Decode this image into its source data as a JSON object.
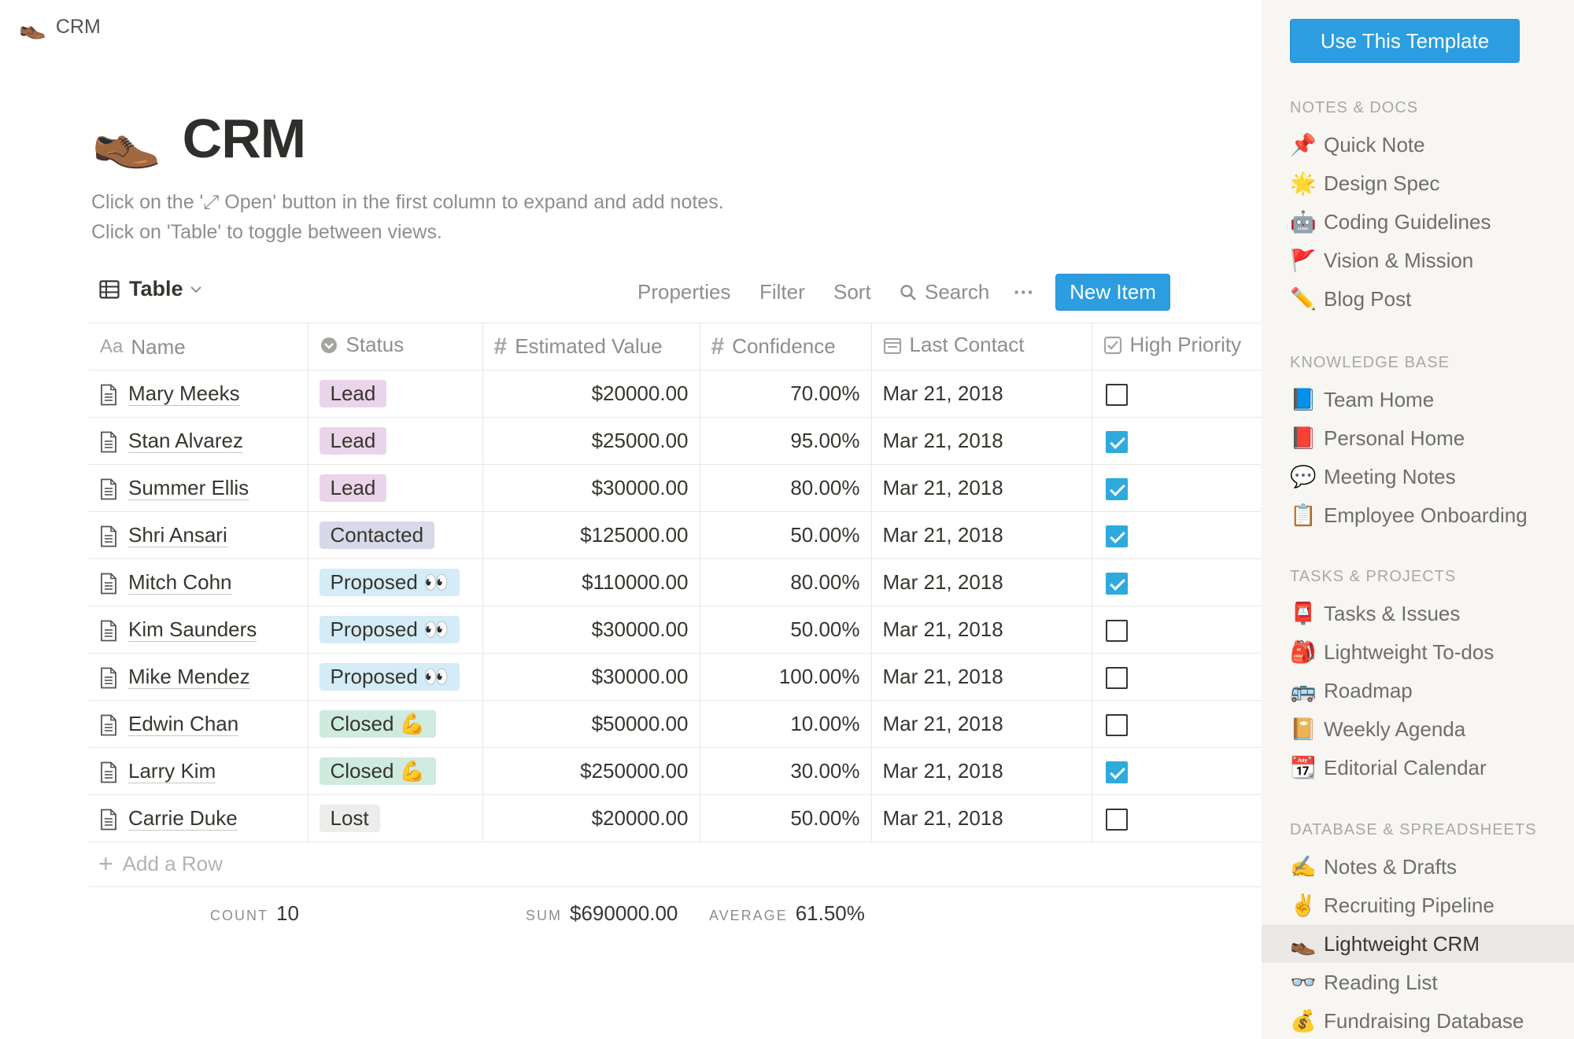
{
  "breadcrumb": {
    "icon": "👞",
    "label": "CRM"
  },
  "page": {
    "icon": "👞",
    "title": "CRM",
    "description": [
      "Click on the '⤢ Open' button in the first column to expand and add notes.",
      "Click on 'Table' to toggle between views."
    ]
  },
  "toolbar": {
    "view_label": "Table",
    "properties": "Properties",
    "filter": "Filter",
    "sort": "Sort",
    "search": "Search",
    "more": "···",
    "new_item": "New Item"
  },
  "table": {
    "headers": {
      "name": "Name",
      "status": "Status",
      "value": "Estimated Value",
      "confidence": "Confidence",
      "last_contact": "Last Contact",
      "high_priority": "High Priority"
    },
    "rows": [
      {
        "name": "Mary Meeks",
        "status": "Lead",
        "value": "$20000.00",
        "confidence": "70.00%",
        "last_contact": "Mar 21, 2018",
        "high_priority": false
      },
      {
        "name": "Stan Alvarez",
        "status": "Lead",
        "value": "$25000.00",
        "confidence": "95.00%",
        "last_contact": "Mar 21, 2018",
        "high_priority": true
      },
      {
        "name": "Summer Ellis",
        "status": "Lead",
        "value": "$30000.00",
        "confidence": "80.00%",
        "last_contact": "Mar 21, 2018",
        "high_priority": true
      },
      {
        "name": "Shri Ansari",
        "status": "Contacted",
        "value": "$125000.00",
        "confidence": "50.00%",
        "last_contact": "Mar 21, 2018",
        "high_priority": true
      },
      {
        "name": "Mitch Cohn",
        "status": "Proposed 👀",
        "value": "$110000.00",
        "confidence": "80.00%",
        "last_contact": "Mar 21, 2018",
        "high_priority": true
      },
      {
        "name": "Kim Saunders",
        "status": "Proposed 👀",
        "value": "$30000.00",
        "confidence": "50.00%",
        "last_contact": "Mar 21, 2018",
        "high_priority": false
      },
      {
        "name": "Mike Mendez",
        "status": "Proposed 👀",
        "value": "$30000.00",
        "confidence": "100.00%",
        "last_contact": "Mar 21, 2018",
        "high_priority": false
      },
      {
        "name": "Edwin Chan",
        "status": "Closed 💪",
        "value": "$50000.00",
        "confidence": "10.00%",
        "last_contact": "Mar 21, 2018",
        "high_priority": false
      },
      {
        "name": "Larry Kim",
        "status": "Closed 💪",
        "value": "$250000.00",
        "confidence": "30.00%",
        "last_contact": "Mar 21, 2018",
        "high_priority": true
      },
      {
        "name": "Carrie Duke",
        "status": "Lost",
        "value": "$20000.00",
        "confidence": "50.00%",
        "last_contact": "Mar 21, 2018",
        "high_priority": false
      }
    ],
    "add_row": "Add a Row",
    "footer": {
      "count_label": "COUNT",
      "count_value": "10",
      "sum_label": "SUM",
      "sum_value": "$690000.00",
      "avg_label": "AVERAGE",
      "avg_value": "61.50%"
    }
  },
  "status_colors": {
    "Lead": "#ead4e9",
    "Contacted": "#d8d9e8",
    "Proposed": "#d3ecf7",
    "Closed": "#cfeadf",
    "Lost": "#ececeb"
  },
  "sidebar": {
    "cta": "Use This Template",
    "sections": [
      {
        "title": "NOTES & DOCS",
        "items": [
          {
            "icon": "📌",
            "label": "Quick Note"
          },
          {
            "icon": "🌟",
            "label": "Design Spec"
          },
          {
            "icon": "🤖",
            "label": "Coding Guidelines"
          },
          {
            "icon": "🚩",
            "label": "Vision & Mission"
          },
          {
            "icon": "✏️",
            "label": "Blog Post"
          }
        ]
      },
      {
        "title": "KNOWLEDGE BASE",
        "items": [
          {
            "icon": "📘",
            "label": "Team Home"
          },
          {
            "icon": "📕",
            "label": "Personal Home"
          },
          {
            "icon": "💬",
            "label": "Meeting Notes"
          },
          {
            "icon": "📋",
            "label": "Employee Onboarding"
          }
        ]
      },
      {
        "title": "TASKS & PROJECTS",
        "items": [
          {
            "icon": "📮",
            "label": "Tasks & Issues"
          },
          {
            "icon": "🎒",
            "label": "Lightweight To-dos"
          },
          {
            "icon": "🚌",
            "label": "Roadmap"
          },
          {
            "icon": "📔",
            "label": "Weekly Agenda"
          },
          {
            "icon": "📆",
            "label": "Editorial Calendar"
          }
        ]
      },
      {
        "title": "DATABASE & SPREADSHEETS",
        "items": [
          {
            "icon": "✍️",
            "label": "Notes & Drafts"
          },
          {
            "icon": "✌️",
            "label": "Recruiting Pipeline"
          },
          {
            "icon": "👞",
            "label": "Lightweight CRM",
            "active": true
          },
          {
            "icon": "👓",
            "label": "Reading List"
          },
          {
            "icon": "💰",
            "label": "Fundraising Database"
          }
        ]
      }
    ]
  }
}
